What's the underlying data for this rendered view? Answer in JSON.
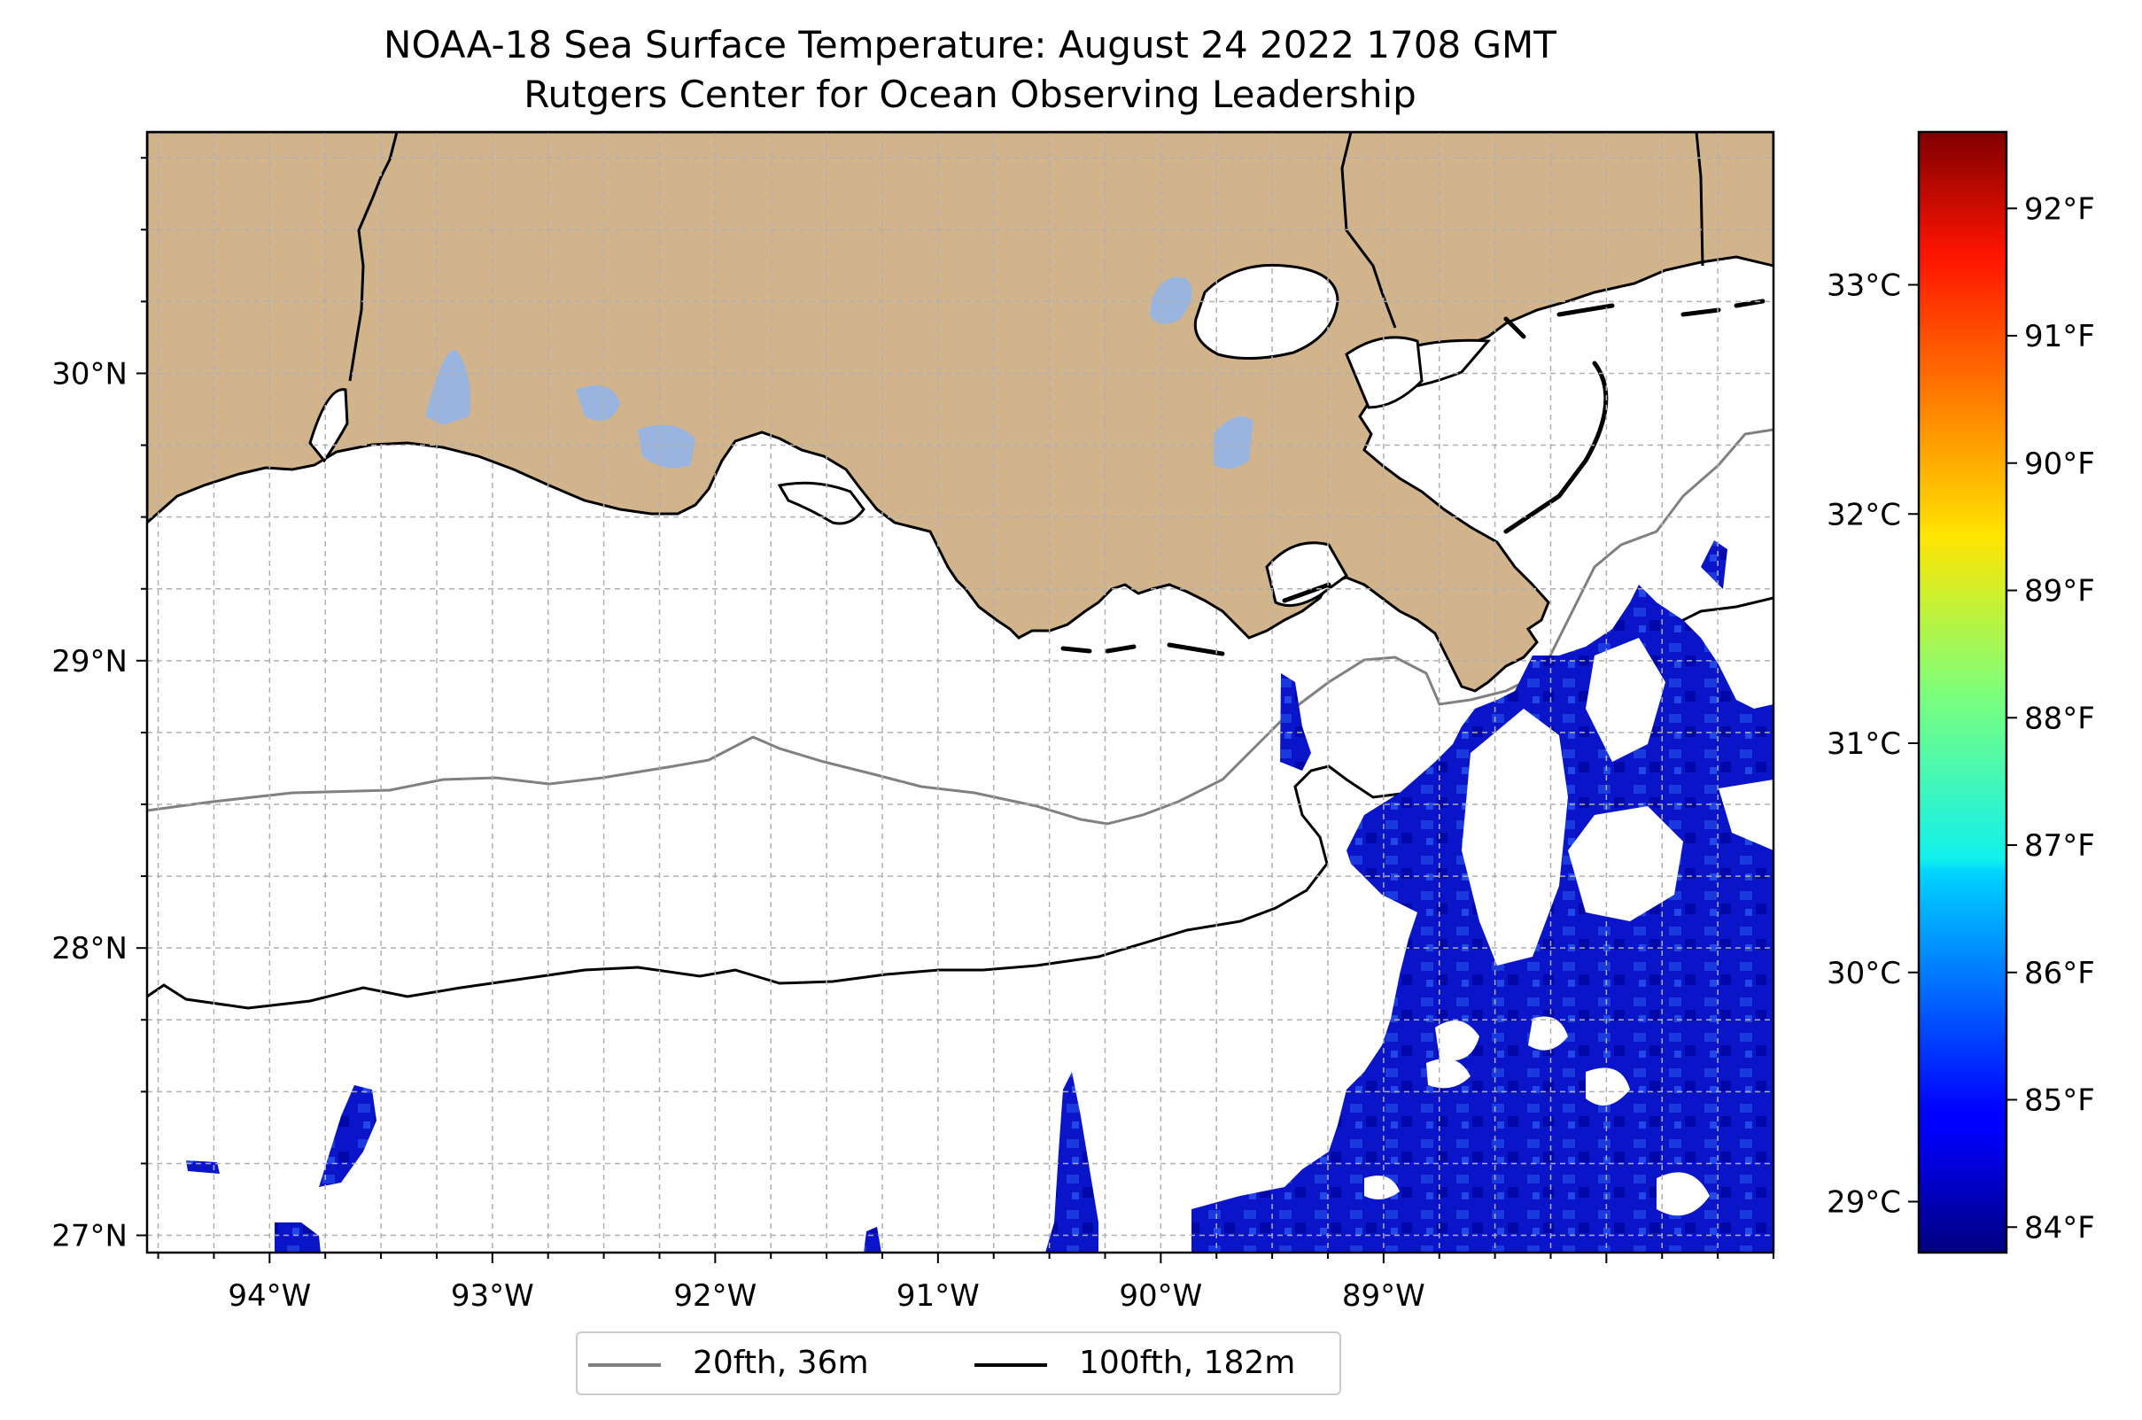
{
  "title": "NOAA-18 Sea Surface Temperature: August 24 2022 1708 GMT",
  "subtitle": "Rutgers Center for Ocean Observing Leadership",
  "map": {
    "lon_range": [
      -94.55,
      -87.25
    ],
    "lat_range": [
      26.94,
      30.84
    ],
    "lon_ticks": [
      "94°W",
      "93°W",
      "92°W",
      "91°W",
      "90°W",
      "89°W"
    ],
    "lat_ticks": [
      "30°N",
      "29°N",
      "28°N",
      "27°N"
    ],
    "land_color": "#d2b48c",
    "lake_color": "#9ab4e0",
    "grid": true
  },
  "legend": {
    "items": [
      {
        "label": "20fth, 36m",
        "color": "#808080"
      },
      {
        "label": "100fth, 182m",
        "color": "#000000"
      }
    ]
  },
  "colorbar": {
    "colormap": "jet",
    "range_f": [
      83.8,
      92.6
    ],
    "fahrenheit_ticks": [
      "84°F",
      "85°F",
      "86°F",
      "87°F",
      "88°F",
      "89°F",
      "90°F",
      "91°F",
      "92°F"
    ],
    "celsius_ticks": [
      "29°C",
      "30°C",
      "31°C",
      "32°C",
      "33°C"
    ]
  }
}
